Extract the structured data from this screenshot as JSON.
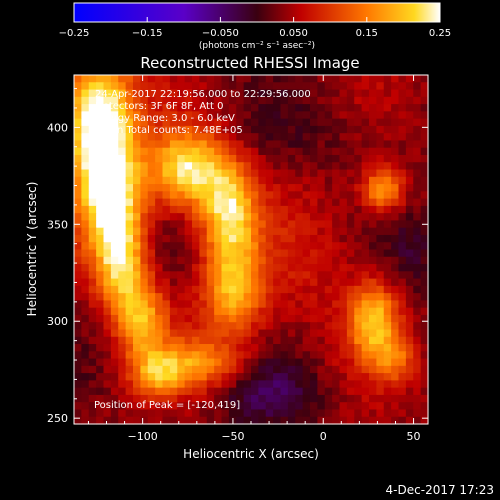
{
  "chart_data": {
    "type": "heatmap",
    "title": "Reconstructed RHESSI Image",
    "xlabel": "Heliocentric X (arcsec)",
    "ylabel": "Heliocentric Y (arcsec)",
    "xlim": [
      -138,
      58
    ],
    "ylim": [
      247,
      427
    ],
    "x_ticks": [
      -100,
      -50,
      0,
      50
    ],
    "y_ticks": [
      250,
      300,
      350,
      400
    ],
    "x_tick_labels": [
      "−100",
      "−50",
      "0",
      "50"
    ],
    "y_tick_labels": [
      "250",
      "300",
      "350",
      "400"
    ],
    "colorbar": {
      "range": [
        -0.25,
        0.25
      ],
      "ticks": [
        -0.25,
        -0.15,
        -0.05,
        0.05,
        0.15,
        0.25
      ],
      "tick_labels": [
        "−0.25",
        "−0.15",
        "−0.050",
        "0.050",
        "0.15",
        "0.25"
      ],
      "units_label": "(photons cm⁻² s⁻¹ asec⁻²)"
    },
    "annotations": [
      "24-Apr-2017 22:19:56.000 to 22:29:56.000",
      "Detectors: 3F 6F 8F, Att 0",
      "Energy Range: 3.0 - 6.0 keV",
      "Clean   Total counts: 7.48E+05"
    ],
    "peak_text": "Position of Peak = [-120,419]",
    "peak_position": [
      -120,
      419
    ],
    "sources": [
      {
        "x": -125,
        "y": 405,
        "sx": 14,
        "sy": 22,
        "amp": 0.25
      },
      {
        "x": -118,
        "y": 365,
        "sx": 12,
        "sy": 20,
        "amp": 0.21
      },
      {
        "x": -112,
        "y": 330,
        "sx": 10,
        "sy": 18,
        "amp": 0.17
      },
      {
        "x": -100,
        "y": 300,
        "sx": 10,
        "sy": 14,
        "amp": 0.14
      },
      {
        "x": -75,
        "y": 378,
        "sx": 15,
        "sy": 14,
        "amp": 0.2
      },
      {
        "x": -52,
        "y": 355,
        "sx": 11,
        "sy": 18,
        "amp": 0.18
      },
      {
        "x": -50,
        "y": 315,
        "sx": 12,
        "sy": 16,
        "amp": 0.15
      },
      {
        "x": -70,
        "y": 278,
        "sx": 18,
        "sy": 9,
        "amp": 0.12
      },
      {
        "x": -92,
        "y": 272,
        "sx": 10,
        "sy": 8,
        "amp": 0.1
      },
      {
        "x": 33,
        "y": 368,
        "sx": 8,
        "sy": 8,
        "amp": 0.15
      },
      {
        "x": 28,
        "y": 300,
        "sx": 10,
        "sy": 14,
        "amp": 0.16
      },
      {
        "x": 40,
        "y": 280,
        "sx": 8,
        "sy": 8,
        "amp": 0.08
      },
      {
        "x": -5,
        "y": 330,
        "sx": 22,
        "sy": 30,
        "amp": 0.03
      },
      {
        "x": 0,
        "y": 395,
        "sx": 30,
        "sy": 15,
        "amp": -0.02
      },
      {
        "x": -30,
        "y": 262,
        "sx": 20,
        "sy": 12,
        "amp": -0.06
      },
      {
        "x": 52,
        "y": 335,
        "sx": 10,
        "sy": 16,
        "amp": -0.04
      }
    ],
    "background_level": 0.035
  },
  "footer": {
    "date": "4-Dec-2017 17:23"
  }
}
